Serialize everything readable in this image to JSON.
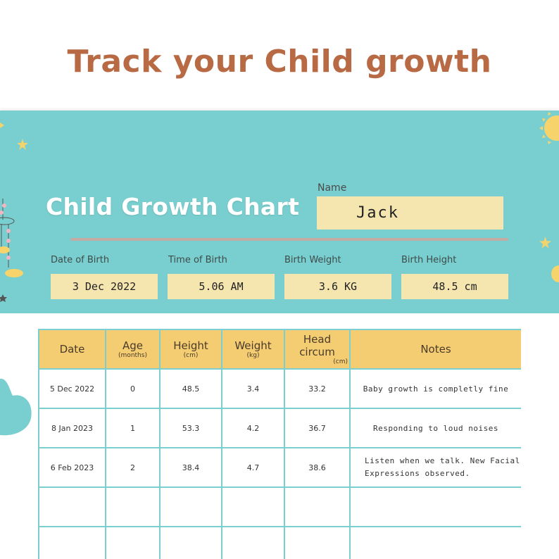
{
  "headline": "Track your Child growth",
  "banner": {
    "title": "Child Growth Chart",
    "name_label": "Name",
    "name_value": "Jack",
    "fields": [
      {
        "label": "Date of Birth",
        "value": "3 Dec 2022"
      },
      {
        "label": "Time of Birth",
        "value": "5.06 AM"
      },
      {
        "label": "Birth Weight",
        "value": "3.6 KG"
      },
      {
        "label": "Birth Height",
        "value": "48.5 cm"
      }
    ]
  },
  "table": {
    "headers": [
      {
        "label": "Date",
        "sub": ""
      },
      {
        "label": "Age",
        "sub": "(months)"
      },
      {
        "label": "Height",
        "sub": "(cm)"
      },
      {
        "label": "Weight",
        "sub": "(kg)"
      },
      {
        "label": "Head circum",
        "sub": "(cm)"
      },
      {
        "label": "Notes",
        "sub": ""
      }
    ],
    "rows": [
      {
        "date": "5 Dec 2022",
        "age": "0",
        "height": "48.5",
        "weight": "3.4",
        "head": "33.2",
        "notes": "Baby growth is completly fine"
      },
      {
        "date": "8 Jan 2023",
        "age": "1",
        "height": "53.3",
        "weight": "4.2",
        "head": "36.7",
        "notes": "Responding to loud noises"
      },
      {
        "date": "6 Feb 2023",
        "age": "2",
        "height": "38.4",
        "weight": "4.7",
        "head": "38.6",
        "notes": "Listen when we talk. New Facial Expressions observed."
      },
      {
        "date": "",
        "age": "",
        "height": "",
        "weight": "",
        "head": "",
        "notes": ""
      },
      {
        "date": "",
        "age": "",
        "height": "",
        "weight": "",
        "head": "",
        "notes": ""
      }
    ]
  },
  "colors": {
    "headline": "#b86a44",
    "banner": "#79cfcf",
    "field_fill": "#f5e6b0",
    "table_header": "#f4cd73",
    "table_border": "#7ccfd0"
  },
  "icons": [
    "sun-icon",
    "star-icon",
    "crib-mobile-icon",
    "cloud-icon"
  ]
}
